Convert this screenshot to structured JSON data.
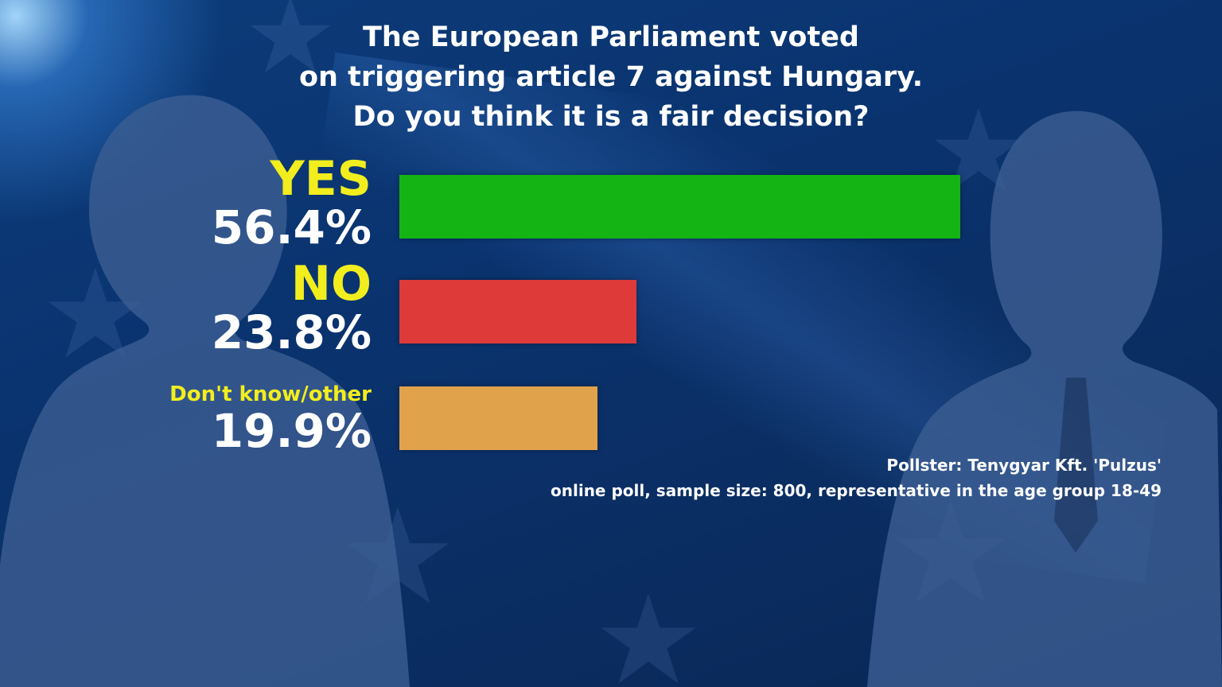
{
  "title_lines": [
    "The European Parliament voted",
    "on triggering article 7 against Hungary.",
    "Do you think it is a fair decision?"
  ],
  "chart_data": {
    "type": "bar",
    "orientation": "horizontal",
    "title": "The European Parliament voted on triggering article 7 against Hungary. Do you think it is a fair decision?",
    "categories": [
      "YES",
      "NO",
      "Don't know/other"
    ],
    "values": [
      56.4,
      23.8,
      19.9
    ],
    "value_labels": [
      "56.4%",
      "23.8%",
      "19.9%"
    ],
    "colors": [
      "#14b414",
      "#de3a3a",
      "#e0a24b"
    ],
    "grid": false
  },
  "source": {
    "line1": "Pollster: Tenygyar Kft. 'Pulzus'",
    "line2": "online poll, sample size: 800, representative in the age group 18-49"
  }
}
